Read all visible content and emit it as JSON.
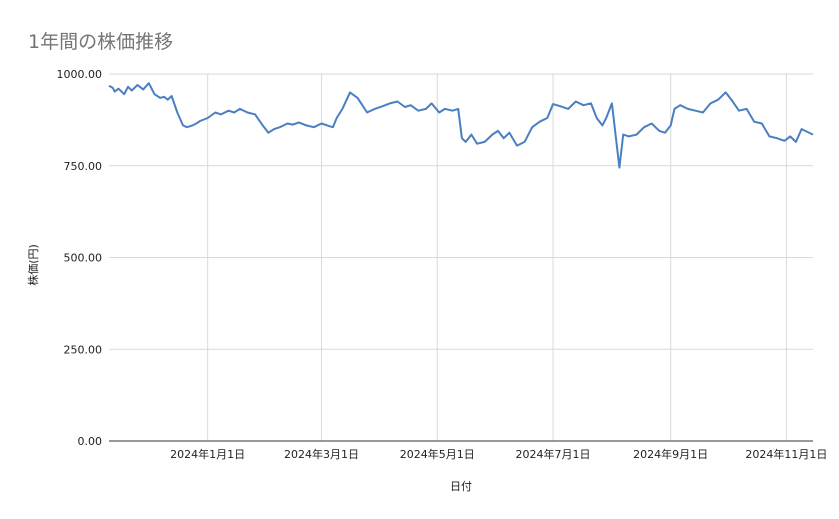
{
  "chart_data": {
    "type": "line",
    "title": "1年間の株価推移",
    "xlabel": "日付",
    "ylabel": "株価(円)",
    "ylim": [
      0,
      1000
    ],
    "y_ticks": [
      "0.00",
      "250.00",
      "500.00",
      "750.00",
      "1000.00"
    ],
    "x_range": [
      "2023-11-10",
      "2024-11-15"
    ],
    "x_ticks": [
      {
        "date": "2024-01-01",
        "label": "2024年1月1日"
      },
      {
        "date": "2024-03-01",
        "label": "2024年3月1日"
      },
      {
        "date": "2024-05-01",
        "label": "2024年5月1日"
      },
      {
        "date": "2024-07-01",
        "label": "2024年7月1日"
      },
      {
        "date": "2024-09-01",
        "label": "2024年9月1日"
      },
      {
        "date": "2024-11-01",
        "label": "2024年11月1日"
      }
    ],
    "grid": true,
    "line_color": "#4a7fc1",
    "series": [
      {
        "x": [
          "2023-11-10",
          "2023-11-12",
          "2023-11-13",
          "2023-11-15",
          "2023-11-18",
          "2023-11-20",
          "2023-11-22",
          "2023-11-25",
          "2023-11-28",
          "2023-12-01",
          "2023-12-04",
          "2023-12-07",
          "2023-12-09",
          "2023-12-11",
          "2023-12-13",
          "2023-12-16",
          "2023-12-19",
          "2023-12-21",
          "2023-12-24",
          "2023-12-26",
          "2023-12-28",
          "2024-01-01",
          "2024-01-05",
          "2024-01-08",
          "2024-01-12",
          "2024-01-15",
          "2024-01-18",
          "2024-01-22",
          "2024-01-26",
          "2024-01-30",
          "2024-02-02",
          "2024-02-05",
          "2024-02-08",
          "2024-02-10",
          "2024-02-12",
          "2024-02-15",
          "2024-02-18",
          "2024-02-22",
          "2024-02-26",
          "2024-03-01",
          "2024-03-05",
          "2024-03-07",
          "2024-03-09",
          "2024-03-12",
          "2024-03-16",
          "2024-03-20",
          "2024-03-25",
          "2024-03-29",
          "2024-04-02",
          "2024-04-06",
          "2024-04-10",
          "2024-04-14",
          "2024-04-17",
          "2024-04-21",
          "2024-04-25",
          "2024-04-28",
          "2024-05-02",
          "2024-05-05",
          "2024-05-09",
          "2024-05-12",
          "2024-05-14",
          "2024-05-16",
          "2024-05-19",
          "2024-05-22",
          "2024-05-26",
          "2024-05-30",
          "2024-06-02",
          "2024-06-05",
          "2024-06-08",
          "2024-06-12",
          "2024-06-16",
          "2024-06-20",
          "2024-06-24",
          "2024-06-28",
          "2024-07-01",
          "2024-07-05",
          "2024-07-09",
          "2024-07-13",
          "2024-07-17",
          "2024-07-21",
          "2024-07-24",
          "2024-07-27",
          "2024-07-29",
          "2024-08-01",
          "2024-08-05",
          "2024-08-07",
          "2024-08-10",
          "2024-08-14",
          "2024-08-18",
          "2024-08-22",
          "2024-08-26",
          "2024-08-29",
          "2024-09-01",
          "2024-09-03",
          "2024-09-06",
          "2024-09-10",
          "2024-09-14",
          "2024-09-18",
          "2024-09-22",
          "2024-09-26",
          "2024-09-30",
          "2024-10-03",
          "2024-10-07",
          "2024-10-11",
          "2024-10-15",
          "2024-10-19",
          "2024-10-23",
          "2024-10-27",
          "2024-10-31",
          "2024-11-03",
          "2024-11-06",
          "2024-11-09",
          "2024-11-15"
        ],
        "y": [
          968,
          962,
          952,
          960,
          945,
          965,
          955,
          970,
          958,
          975,
          945,
          935,
          938,
          930,
          940,
          895,
          860,
          855,
          860,
          865,
          872,
          880,
          895,
          890,
          900,
          895,
          905,
          895,
          890,
          860,
          840,
          850,
          855,
          860,
          865,
          862,
          868,
          860,
          855,
          865,
          858,
          855,
          880,
          905,
          950,
          935,
          895,
          905,
          912,
          920,
          925,
          910,
          915,
          900,
          905,
          920,
          895,
          905,
          900,
          905,
          825,
          815,
          835,
          810,
          815,
          835,
          845,
          825,
          840,
          805,
          815,
          855,
          870,
          880,
          918,
          912,
          905,
          925,
          915,
          920,
          880,
          860,
          880,
          920,
          745,
          835,
          830,
          835,
          855,
          865,
          845,
          840,
          860,
          905,
          915,
          905,
          900,
          895,
          920,
          930,
          950,
          930,
          900,
          905,
          870,
          865,
          830,
          825,
          818,
          830,
          815,
          850,
          835
        ]
      }
    ]
  }
}
